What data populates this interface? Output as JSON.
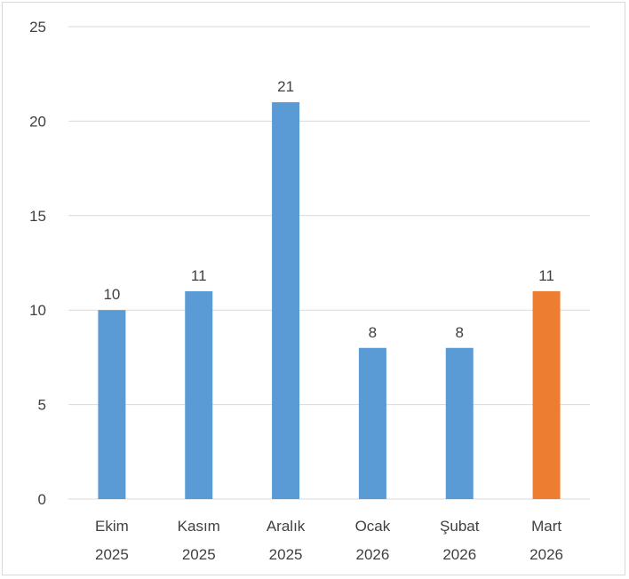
{
  "chart_data": {
    "type": "bar",
    "title": "",
    "xlabel": "",
    "ylabel": "",
    "categories": [
      [
        "Ekim",
        "2025"
      ],
      [
        "Kasım",
        "2025"
      ],
      [
        "Aralık",
        "2025"
      ],
      [
        "Ocak",
        "2026"
      ],
      [
        "Şubat",
        "2026"
      ],
      [
        "Mart",
        "2026"
      ]
    ],
    "values": [
      10,
      11,
      21,
      8,
      8,
      11
    ],
    "ylim": [
      0,
      25
    ],
    "yticks": [
      0,
      5,
      10,
      15,
      20,
      25
    ],
    "grid": true,
    "data_labels": true,
    "legend": false,
    "colors": {
      "default_bar": "#5b9bd5",
      "highlight_bar": "#ed7d31",
      "gridline": "#d9d9d9",
      "text": "#404040"
    },
    "highlight_index": 5
  }
}
